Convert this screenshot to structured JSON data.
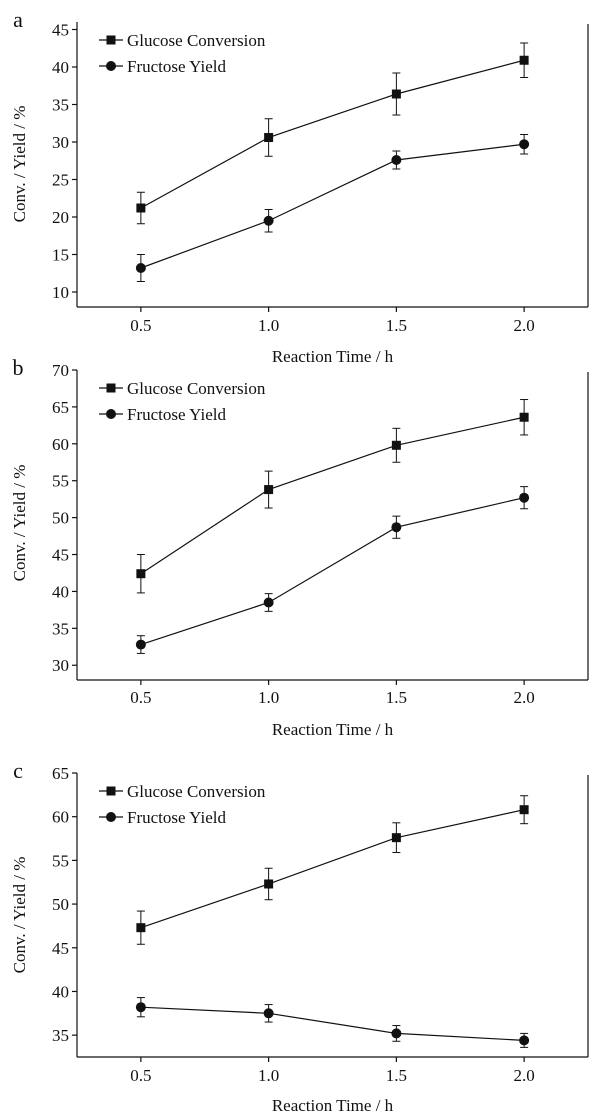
{
  "chart_data": [
    {
      "panel_label": "a",
      "type": "line",
      "xlabel": "Reaction Time / h",
      "ylabel": "Conv. / Yield / %",
      "x": [
        0.5,
        1.0,
        1.5,
        2.0
      ],
      "xlim": [
        0.25,
        2.25
      ],
      "xticks": [
        "0.5",
        "1.0",
        "1.5",
        "2.0"
      ],
      "ylim": [
        8,
        46
      ],
      "yticks": [
        10,
        15,
        20,
        25,
        30,
        35,
        40,
        45
      ],
      "legend_position": "top-left",
      "grid": false,
      "series": [
        {
          "name": "Glucose Conversion",
          "marker": "square",
          "values": [
            21.2,
            30.6,
            36.4,
            40.9
          ],
          "errors": [
            2.1,
            2.5,
            2.8,
            2.3
          ]
        },
        {
          "name": "Fructose Yield",
          "marker": "circle",
          "values": [
            13.2,
            19.5,
            27.6,
            29.7
          ],
          "errors": [
            1.8,
            1.5,
            1.2,
            1.3
          ]
        }
      ]
    },
    {
      "panel_label": "b",
      "type": "line",
      "xlabel": "Reaction Time / h",
      "ylabel": "Conv. / Yield / %",
      "x": [
        0.5,
        1.0,
        1.5,
        2.0
      ],
      "xlim": [
        0.25,
        2.25
      ],
      "xticks": [
        "0.5",
        "1.0",
        "1.5",
        "2.0"
      ],
      "ylim": [
        28,
        70
      ],
      "yticks": [
        30,
        35,
        40,
        45,
        50,
        55,
        60,
        65,
        70
      ],
      "legend_position": "top-left",
      "grid": false,
      "series": [
        {
          "name": "Glucose Conversion",
          "marker": "square",
          "values": [
            42.4,
            53.8,
            59.8,
            63.6
          ],
          "errors": [
            2.6,
            2.5,
            2.3,
            2.4
          ]
        },
        {
          "name": "Fructose Yield",
          "marker": "circle",
          "values": [
            32.8,
            38.5,
            48.7,
            52.7
          ],
          "errors": [
            1.2,
            1.2,
            1.5,
            1.5
          ]
        }
      ]
    },
    {
      "panel_label": "c",
      "type": "line",
      "xlabel": "Reaction Time / h",
      "ylabel": "Conv. / Yield / %",
      "x": [
        0.5,
        1.0,
        1.5,
        2.0
      ],
      "xlim": [
        0.25,
        2.25
      ],
      "xticks": [
        "0.5",
        "1.0",
        "1.5",
        "2.0"
      ],
      "ylim": [
        32.5,
        65
      ],
      "yticks": [
        35,
        40,
        45,
        50,
        55,
        60,
        65
      ],
      "legend_position": "top-left",
      "grid": false,
      "series": [
        {
          "name": "Glucose Conversion",
          "marker": "square",
          "values": [
            47.3,
            52.3,
            57.6,
            60.8
          ],
          "errors": [
            1.9,
            1.8,
            1.7,
            1.6
          ]
        },
        {
          "name": "Fructose Yield",
          "marker": "circle",
          "values": [
            38.2,
            37.5,
            35.2,
            34.4
          ],
          "errors": [
            1.1,
            1.0,
            0.9,
            0.8
          ]
        }
      ]
    }
  ]
}
